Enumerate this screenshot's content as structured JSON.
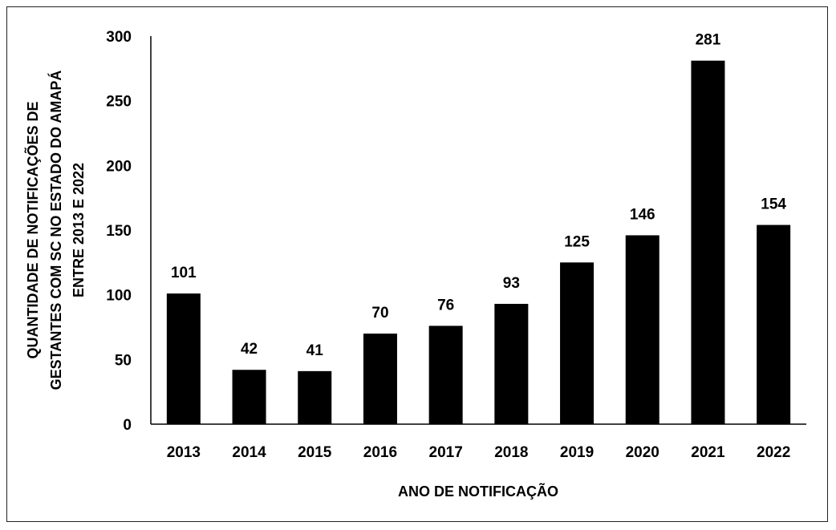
{
  "chart_data": {
    "type": "bar",
    "title": "",
    "xlabel": "ANO DE NOTIFICAÇÃO",
    "ylabel_lines": [
      "QUANTIDADE DE NOTIFICAÇÕES DE",
      "GESTANTES COM SC NO ESTADO DO AMAPÁ",
      "ENTRE 2013 E 2022"
    ],
    "categories": [
      "2013",
      "2014",
      "2015",
      "2016",
      "2017",
      "2018",
      "2019",
      "2020",
      "2021",
      "2022"
    ],
    "values": [
      101,
      42,
      41,
      70,
      76,
      93,
      125,
      146,
      281,
      154
    ],
    "ylim": [
      0,
      300
    ],
    "yticks": [
      0,
      50,
      100,
      150,
      200,
      250,
      300
    ],
    "grid": false,
    "legend": "none",
    "bar_color": "#000000",
    "data_labels": true
  }
}
